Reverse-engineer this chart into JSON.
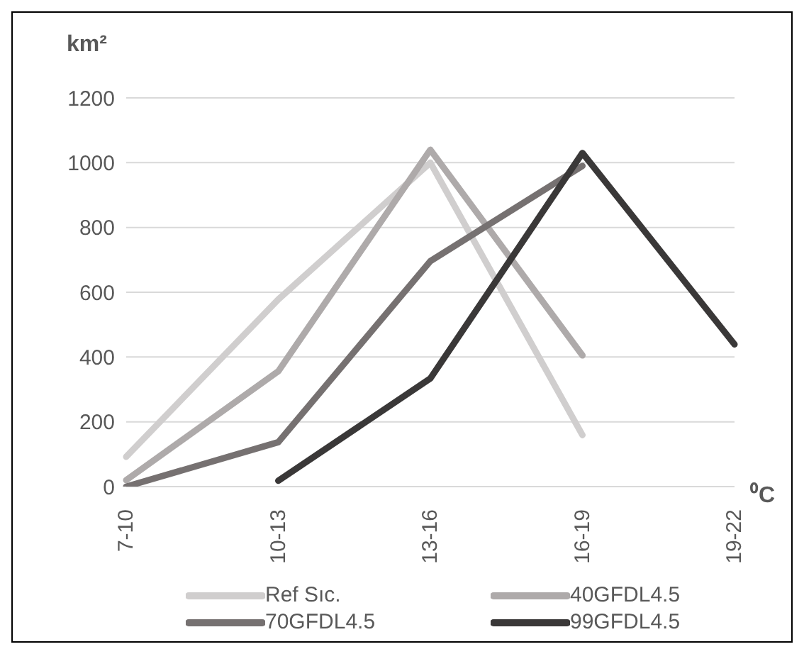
{
  "chart_data": {
    "type": "line",
    "categories": [
      "7-10",
      "10-13",
      "13-16",
      "16-19",
      "19-22"
    ],
    "series": [
      {
        "name": "Ref Sıc.",
        "color": "#d0cece",
        "values": [
          92,
          578,
          1000,
          159,
          null
        ]
      },
      {
        "name": "40GFDL4.5",
        "color": "#aeaaaa",
        "values": [
          20,
          356,
          1040,
          405,
          null
        ]
      },
      {
        "name": "70GFDL4.5",
        "color": "#767171",
        "values": [
          0,
          137,
          696,
          990,
          null
        ]
      },
      {
        "name": "99GFDL4.5",
        "color": "#3a3838",
        "values": [
          null,
          18,
          334,
          1030,
          439
        ]
      }
    ],
    "ylabel": "km²",
    "xlabel": "⁰C",
    "ylim": [
      0,
      1200
    ],
    "yticks": [
      0,
      200,
      400,
      600,
      800,
      1000,
      1200
    ],
    "grid": "y",
    "legend": "bottom"
  }
}
